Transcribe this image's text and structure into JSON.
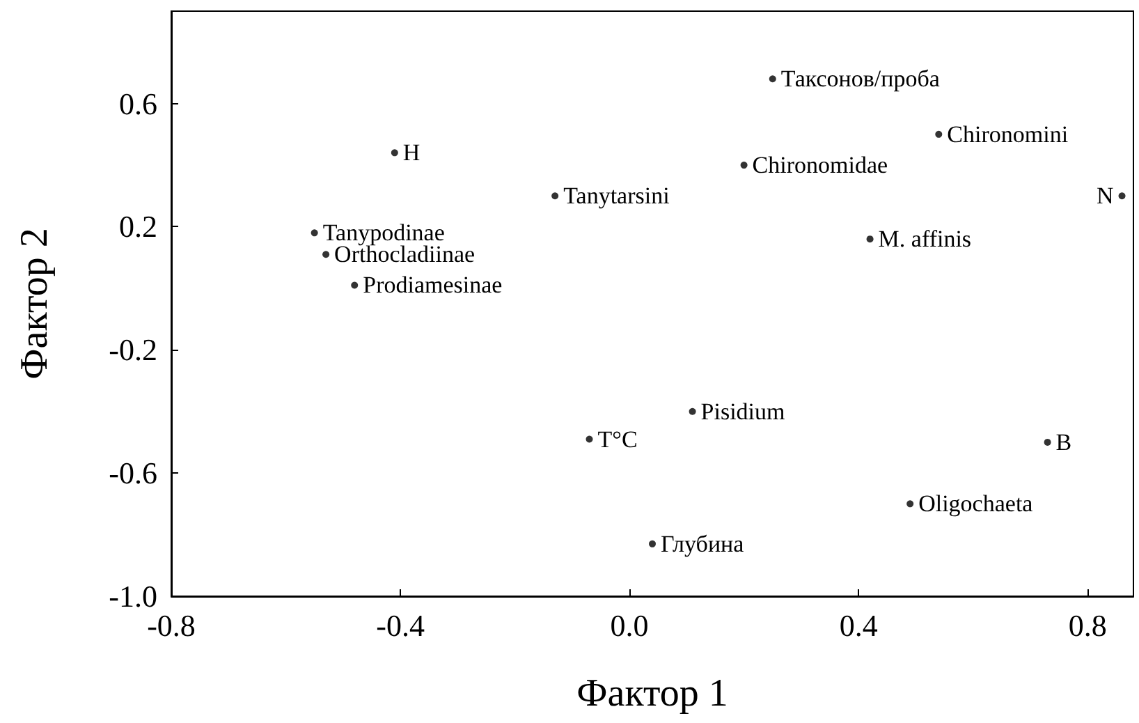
{
  "chart_data": {
    "type": "scatter",
    "xlabel": "Фактор 1",
    "ylabel": "Фактор 2",
    "xlim": [
      -0.8,
      0.88
    ],
    "ylim": [
      -1.0,
      0.9
    ],
    "xticks": [
      -0.8,
      -0.4,
      {
        "value": 0,
        "label": "0.0"
      },
      0.4,
      0.8
    ],
    "yticks": [
      {
        "value": -1.0,
        "label": "-1.0"
      },
      -0.6,
      -0.2,
      0.2,
      0.6
    ],
    "marker": "circle",
    "grid": false,
    "series": [
      {
        "color": "#000000",
        "x": [
          0.25,
          0.54,
          -0.41,
          0.2,
          -0.13,
          0.86,
          0.42,
          -0.55,
          -0.53,
          -0.48,
          -0.07,
          0.11,
          0.73,
          0.49,
          0.04
        ],
        "values": [
          0.68,
          0.5,
          0.44,
          0.4,
          0.3,
          0.3,
          0.16,
          0.18,
          0.11,
          0.01,
          -0.49,
          -0.4,
          -0.5,
          -0.7,
          -0.83
        ]
      }
    ],
    "annotations": [
      {
        "text": "Таксонов/проба",
        "x": 0.25,
        "y": 0.68
      },
      {
        "text": "Chironomini",
        "x": 0.54,
        "y": 0.5
      },
      {
        "text": "H",
        "x": -0.41,
        "y": 0.44
      },
      {
        "text": "Chironomidae",
        "x": 0.2,
        "y": 0.4
      },
      {
        "text": "Tanytarsini",
        "x": -0.13,
        "y": 0.3
      },
      {
        "text": "N",
        "x": 0.86,
        "y": 0.3
      },
      {
        "text": "M. affinis",
        "x": 0.42,
        "y": 0.16
      },
      {
        "text": "Tanypodinae",
        "x": -0.55,
        "y": 0.18
      },
      {
        "text": "Orthocladiinae",
        "x": -0.53,
        "y": 0.11
      },
      {
        "text": "Prodiamesinae",
        "x": -0.48,
        "y": 0.01
      },
      {
        "text": "T°C",
        "x": -0.07,
        "y": -0.49
      },
      {
        "text": "Pisidium",
        "x": 0.11,
        "y": -0.4
      },
      {
        "text": "B",
        "x": 0.73,
        "y": -0.5
      },
      {
        "text": "Oligochaeta",
        "x": 0.49,
        "y": -0.7
      },
      {
        "text": "Глубина",
        "x": 0.04,
        "y": -0.83
      }
    ]
  }
}
